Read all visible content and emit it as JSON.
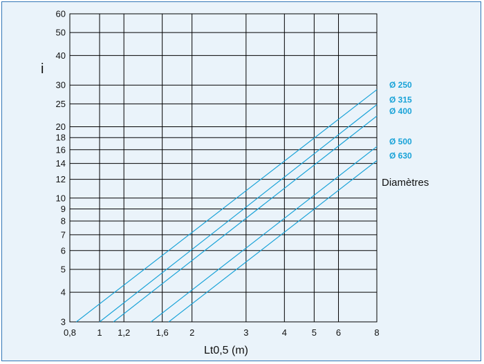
{
  "chart_data": {
    "type": "line",
    "title": "",
    "xlabel": "Lt0,5 (m)",
    "ylabel": "i",
    "xscale": "log",
    "yscale": "log",
    "xlim": [
      0.8,
      8
    ],
    "ylim": [
      3,
      60
    ],
    "x_ticks": [
      0.8,
      1,
      1.2,
      1.6,
      2,
      3,
      4,
      5,
      6,
      8
    ],
    "x_tick_labels": [
      "0,8",
      "1",
      "1,2",
      "1,6",
      "2",
      "3",
      "4",
      "5",
      "6",
      "8"
    ],
    "y_ticks": [
      3,
      4,
      5,
      6,
      7,
      8,
      9,
      10,
      12,
      14,
      16,
      18,
      20,
      25,
      30,
      40,
      50,
      60
    ],
    "y_tick_labels": [
      "3",
      "4",
      "5",
      "6",
      "7",
      "8",
      "9",
      "10",
      "12",
      "14",
      "16",
      "18",
      "20",
      "25",
      "30",
      "40",
      "50",
      "60"
    ],
    "grid": true,
    "legend_title": "Diamètres",
    "series": [
      {
        "name": "Ø 250",
        "x": [
          0.84,
          8
        ],
        "y": [
          3,
          28.7
        ]
      },
      {
        "name": "Ø 315",
        "x": [
          1.0,
          8
        ],
        "y": [
          3,
          24.8
        ]
      },
      {
        "name": "Ø 400",
        "x": [
          1.11,
          8
        ],
        "y": [
          3,
          22.2
        ]
      },
      {
        "name": "Ø 500",
        "x": [
          1.47,
          8
        ],
        "y": [
          3,
          16.5
        ]
      },
      {
        "name": "Ø 630",
        "x": [
          1.68,
          8
        ],
        "y": [
          3,
          14.4
        ]
      }
    ],
    "line_color": "#1aa3d8"
  }
}
